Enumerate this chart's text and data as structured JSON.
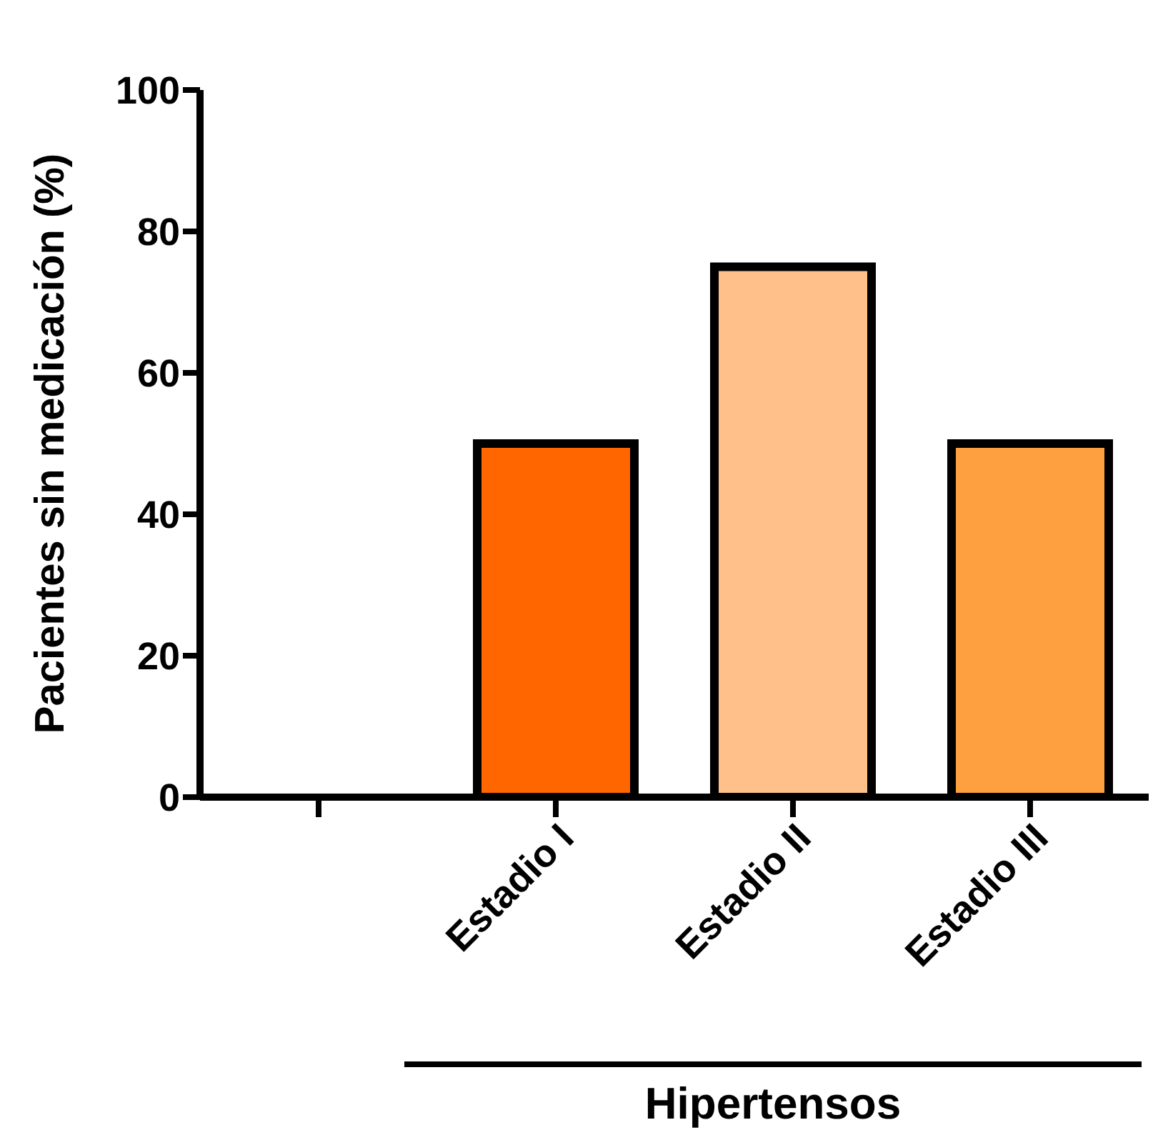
{
  "chart_data": {
    "type": "bar",
    "ylabel": "Pacientes sin medicación  (%)",
    "xlabel": "Hipertensos",
    "categories": [
      null,
      "Estadio I",
      "Estadio II",
      "Estadio III"
    ],
    "values": [
      null,
      50,
      75,
      50
    ],
    "colors": [
      "#ff6600",
      "#ff6600",
      "#ffc08a",
      "#ffa040"
    ],
    "ylim": [
      0,
      100
    ],
    "yticks": [
      0,
      20,
      40,
      60,
      80,
      100
    ],
    "grid": false,
    "legend": false
  }
}
